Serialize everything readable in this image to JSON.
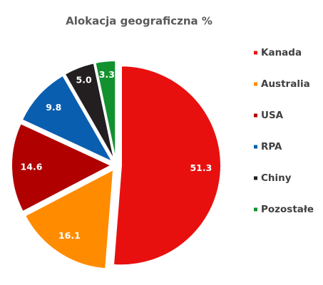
{
  "chart_data": {
    "type": "pie",
    "title": "Alokacja geograficzna %",
    "categories": [
      "Kanada",
      "Australia",
      "USA",
      "RPA",
      "Chiny",
      "Pozostałe"
    ],
    "values": [
      51.3,
      16.1,
      14.6,
      9.8,
      5.0,
      3.3
    ],
    "value_labels": [
      "51.3",
      "16.1",
      "14.6",
      "9.8",
      "5.0",
      "3.3"
    ],
    "colors": [
      "#e8100f",
      "#ff8c00",
      "#b00000",
      "#0a5eaf",
      "#231f20",
      "#13912f"
    ],
    "legend": "right"
  }
}
